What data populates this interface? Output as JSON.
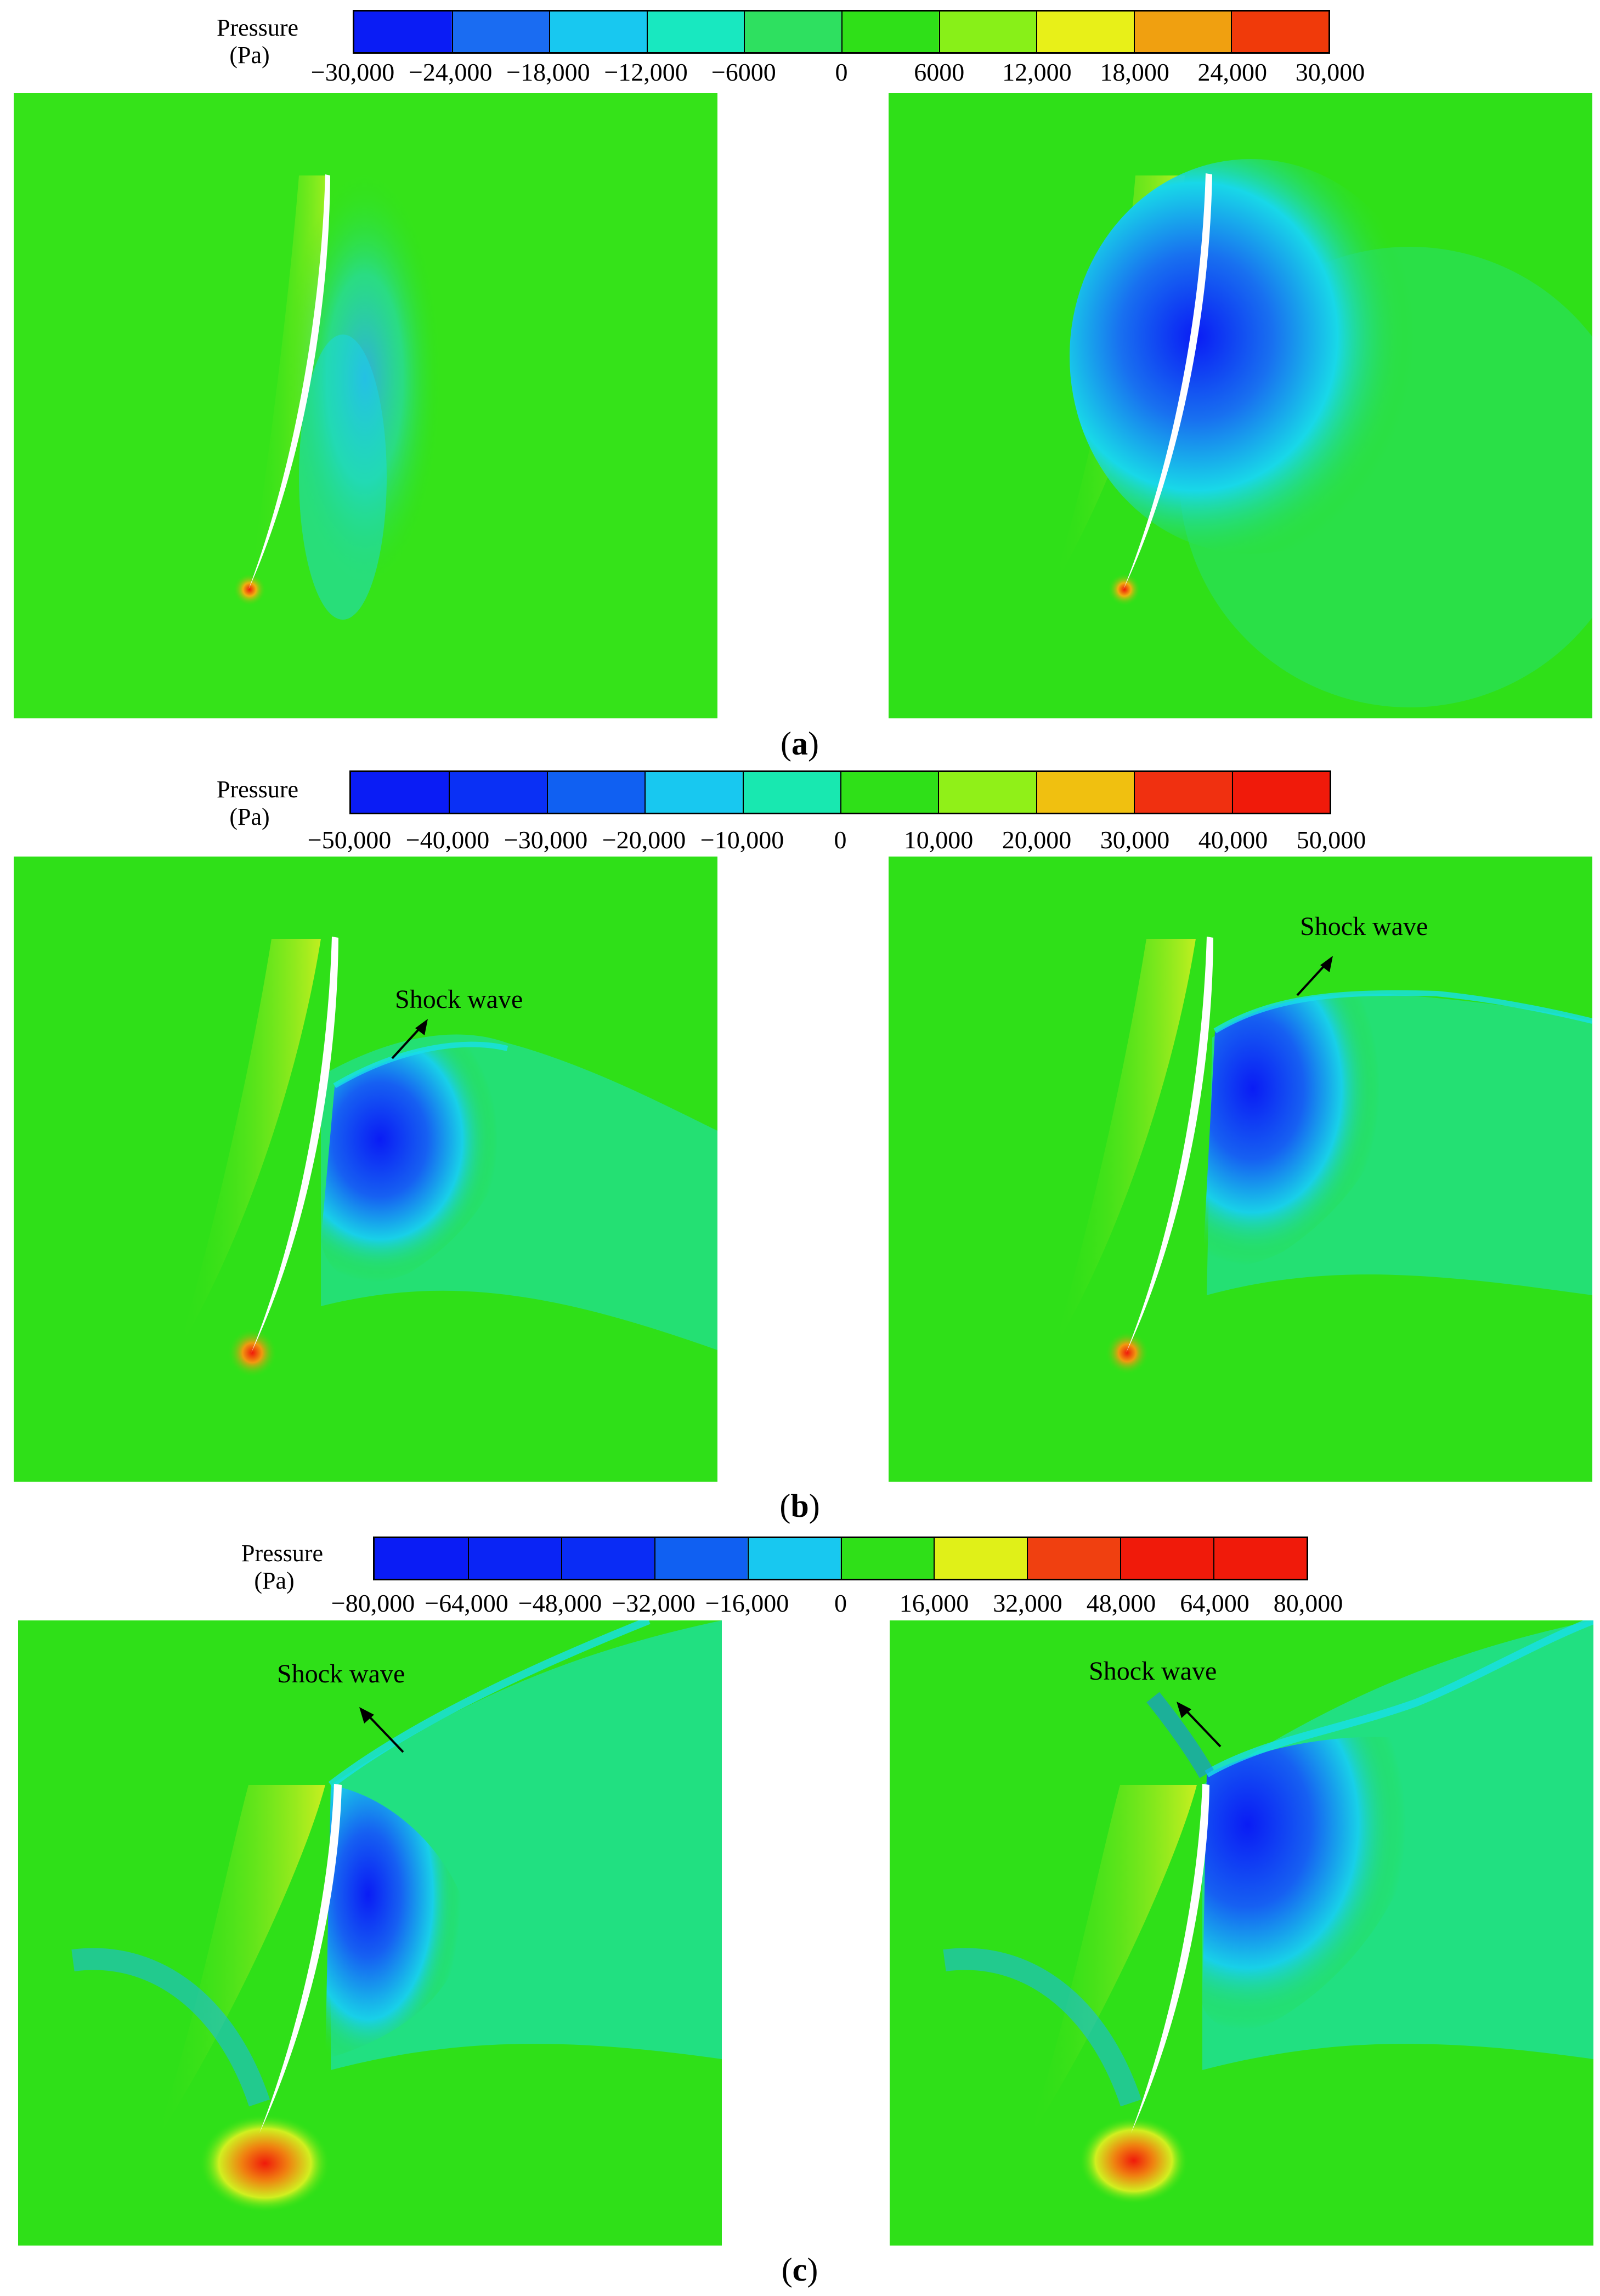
{
  "groups": [
    {
      "id": "a",
      "label": "a",
      "colorbar": {
        "title_line1": "Pressure",
        "title_line2": "(Pa)",
        "ticks": [
          "−30,000",
          "−24,000",
          "−18,000",
          "−12,000",
          "−6000",
          "0",
          "6000",
          "12,000",
          "18,000",
          "24,000",
          "30,000"
        ]
      },
      "annotations": []
    },
    {
      "id": "b",
      "label": "b",
      "colorbar": {
        "title_line1": "Pressure",
        "title_line2": "(Pa)",
        "ticks": [
          "−50,000",
          "−40,000",
          "−30,000",
          "−20,000",
          "−10,000",
          "0",
          "10,000",
          "20,000",
          "30,000",
          "40,000",
          "50,000"
        ]
      },
      "annotations": [
        "Shock wave",
        "Shock wave"
      ]
    },
    {
      "id": "c",
      "label": "c",
      "colorbar": {
        "title_line1": "Pressure",
        "title_line2": "(Pa)",
        "ticks": [
          "−80,000",
          "−64,000",
          "−48,000",
          "−32,000",
          "−16,000",
          "0",
          "16,000",
          "32,000",
          "48,000",
          "64,000",
          "80,000"
        ]
      },
      "annotations": [
        "Shock wave",
        "Shock wave"
      ]
    }
  ],
  "colors": {
    "field_green": "#2fe018",
    "low_pressure_blue": "#0a1cf5",
    "cyan": "#16e6e0",
    "high_pressure_red": "#f01a0a",
    "yellow": "#d8f01a"
  }
}
